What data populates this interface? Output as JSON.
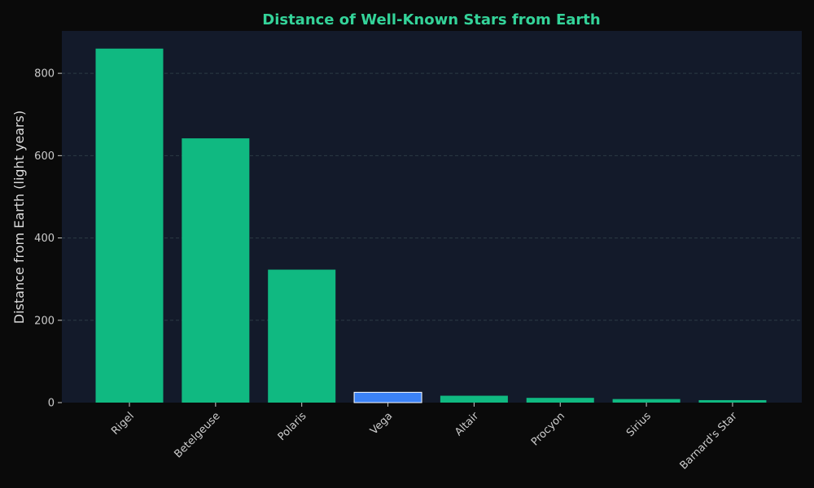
{
  "chart_data": {
    "type": "bar",
    "title": "Distance of Well-Known Stars from Earth",
    "xlabel": "",
    "ylabel": "Distance from Earth (light years)",
    "categories": [
      "Rigel",
      "Betelgeuse",
      "Polaris",
      "Vega",
      "Altair",
      "Procyon",
      "Sirius",
      "Barnard's Star"
    ],
    "values": [
      860,
      642,
      323,
      25,
      16.7,
      11.5,
      8.6,
      6
    ],
    "highlight": "Vega",
    "ylim": [
      0,
      903
    ],
    "yticks": [
      0,
      200,
      400,
      600,
      800
    ],
    "grid": true,
    "legend": "none"
  },
  "colors": {
    "page_background": "#0a0a0a",
    "plot_background": "#131a2a",
    "bar": "#10b981",
    "bar_highlight": "#3b82f6",
    "highlight_edge": "#ffffff",
    "title": "#34d399",
    "axis_text": "#cccccc",
    "ylabel": "#dddddd",
    "grid": "#2c3a44"
  }
}
